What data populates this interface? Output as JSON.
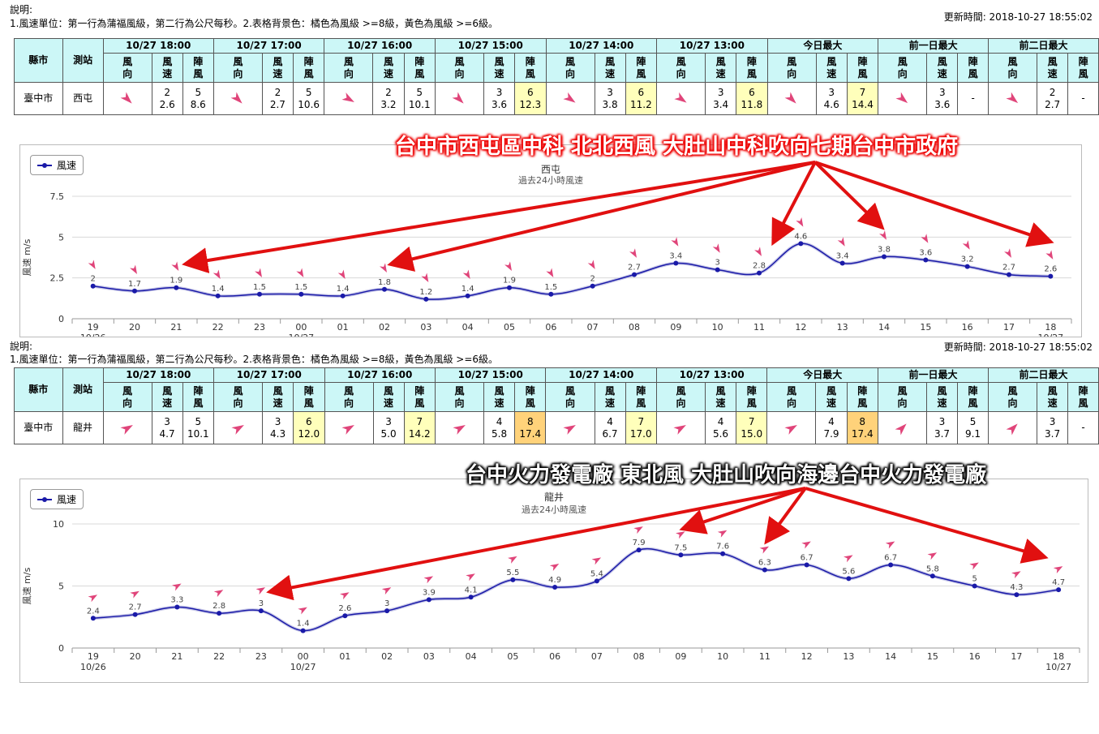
{
  "panels": [
    {
      "note_title": "說明:",
      "note_text": "1.風速單位：第一行為蒲福風級，第二行為公尺每秒。2.表格背景色：橘色為風級 >=8級，黃色為風級 >=6級。",
      "updated": "更新時間: 2018-10-27 18:55:02",
      "table": {
        "county_header": "縣市",
        "station_header": "測站",
        "groups": [
          "10/27 18:00",
          "10/27 17:00",
          "10/27 16:00",
          "10/27 15:00",
          "10/27 14:00",
          "10/27 13:00",
          "今日最大",
          "前一日最大",
          "前二日最大"
        ],
        "sub": [
          "風向",
          "風速",
          "陣風"
        ],
        "county": "臺中市",
        "station": "西屯",
        "cells": [
          {
            "dir": 135,
            "speed": [
              "2",
              "2.6"
            ],
            "gust": [
              "5",
              "8.6"
            ],
            "gust_color": ""
          },
          {
            "dir": 135,
            "speed": [
              "2",
              "2.7"
            ],
            "gust": [
              "5",
              "10.6"
            ],
            "gust_color": ""
          },
          {
            "dir": 120,
            "speed": [
              "2",
              "3.2"
            ],
            "gust": [
              "5",
              "10.1"
            ],
            "gust_color": ""
          },
          {
            "dir": 135,
            "speed": [
              "3",
              "3.6"
            ],
            "gust": [
              "6",
              "12.3"
            ],
            "gust_color": "yellow"
          },
          {
            "dir": 125,
            "speed": [
              "3",
              "3.8"
            ],
            "gust": [
              "6",
              "11.2"
            ],
            "gust_color": "yellow"
          },
          {
            "dir": 125,
            "speed": [
              "3",
              "3.4"
            ],
            "gust": [
              "6",
              "11.8"
            ],
            "gust_color": "yellow"
          },
          {
            "dir": 135,
            "speed": [
              "3",
              "4.6"
            ],
            "gust": [
              "7",
              "14.4"
            ],
            "gust_color": "yellow"
          },
          {
            "dir": 130,
            "speed": [
              "3",
              "3.6"
            ],
            "gust": [
              "-",
              ""
            ],
            "gust_color": ""
          },
          {
            "dir": 130,
            "speed": [
              "2",
              "2.7"
            ],
            "gust": [
              "-",
              ""
            ],
            "gust_color": ""
          }
        ]
      },
      "banner": "台中市西屯區中科 北北西風 大肚山中科吹向七期台中市政府",
      "legend": "風速"
    },
    {
      "note_title": "說明:",
      "note_text": "1.風速單位：第一行為蒲福風級，第二行為公尺每秒。2.表格背景色：橘色為風級 >=8級，黃色為風級 >=6級。",
      "updated": "更新時間: 2018-10-27 18:55:02",
      "table": {
        "county_header": "縣市",
        "station_header": "測站",
        "groups": [
          "10/27 18:00",
          "10/27 17:00",
          "10/27 16:00",
          "10/27 15:00",
          "10/27 14:00",
          "10/27 13:00",
          "今日最大",
          "前一日最大",
          "前二日最大"
        ],
        "sub": [
          "風向",
          "風速",
          "陣風"
        ],
        "county": "臺中市",
        "station": "龍井",
        "cells": [
          {
            "dir": 60,
            "speed": [
              "3",
              "4.7"
            ],
            "gust": [
              "5",
              "10.1"
            ],
            "gust_color": ""
          },
          {
            "dir": 60,
            "speed": [
              "3",
              "4.3"
            ],
            "gust": [
              "6",
              "12.0"
            ],
            "gust_color": "yellow"
          },
          {
            "dir": 60,
            "speed": [
              "3",
              "5.0"
            ],
            "gust": [
              "7",
              "14.2"
            ],
            "gust_color": "yellow"
          },
          {
            "dir": 60,
            "speed": [
              "4",
              "5.8"
            ],
            "gust": [
              "8",
              "17.4"
            ],
            "gust_color": "orange"
          },
          {
            "dir": 60,
            "speed": [
              "4",
              "6.7"
            ],
            "gust": [
              "7",
              "17.0"
            ],
            "gust_color": "yellow"
          },
          {
            "dir": 60,
            "speed": [
              "4",
              "5.6"
            ],
            "gust": [
              "7",
              "15.0"
            ],
            "gust_color": "yellow"
          },
          {
            "dir": 60,
            "speed": [
              "4",
              "7.9"
            ],
            "gust": [
              "8",
              "17.4"
            ],
            "gust_color": "orange"
          },
          {
            "dir": 45,
            "speed": [
              "3",
              "3.7"
            ],
            "gust": [
              "5",
              "9.1"
            ],
            "gust_color": ""
          },
          {
            "dir": 45,
            "speed": [
              "3",
              "3.7"
            ],
            "gust": [
              "-",
              ""
            ],
            "gust_color": ""
          }
        ]
      },
      "banner": "台中火力發電廠 東北風 大肚山吹向海邊台中火力發電廠",
      "legend": "風速"
    }
  ],
  "chart_data": [
    {
      "type": "line",
      "title": "西屯",
      "subtitle": "過去24小時風速",
      "ylabel": "風速 m/s",
      "ylim": [
        0,
        7.5
      ],
      "yticks": [
        "0",
        "2.5",
        "5",
        "7.5"
      ],
      "x": [
        "19",
        "20",
        "21",
        "22",
        "23",
        "00",
        "01",
        "02",
        "03",
        "04",
        "05",
        "06",
        "07",
        "08",
        "09",
        "10",
        "11",
        "12",
        "13",
        "14",
        "15",
        "16",
        "17",
        "18"
      ],
      "x_dates": {
        "0": "10/26",
        "5": "10/27",
        "23": "10/27"
      },
      "series": [
        {
          "name": "風速",
          "values": [
            2,
            1.7,
            1.9,
            1.4,
            1.5,
            1.5,
            1.4,
            1.8,
            1.2,
            1.4,
            1.9,
            1.5,
            2,
            2.7,
            3.4,
            3,
            2.8,
            4.6,
            3.4,
            3.8,
            3.6,
            3.2,
            2.7,
            2.6
          ]
        }
      ],
      "grid": true,
      "legend_position": "top-left",
      "wind_marker_color": "#e0457a"
    },
    {
      "type": "line",
      "title": "龍井",
      "subtitle": "過去24小時風速",
      "ylabel": "風速 m/s",
      "ylim": [
        0,
        10
      ],
      "yticks": [
        "0",
        "5",
        "10"
      ],
      "x": [
        "19",
        "20",
        "21",
        "22",
        "23",
        "00",
        "01",
        "02",
        "03",
        "04",
        "05",
        "06",
        "07",
        "08",
        "09",
        "10",
        "11",
        "12",
        "13",
        "14",
        "15",
        "16",
        "17",
        "18"
      ],
      "x_dates": {
        "0": "10/26",
        "5": "10/27",
        "23": "10/27"
      },
      "series": [
        {
          "name": "風速",
          "values": [
            2.4,
            2.7,
            3.3,
            2.8,
            3,
            1.4,
            2.6,
            3,
            3.9,
            4.1,
            5.5,
            4.9,
            5.4,
            7.9,
            7.5,
            7.6,
            6.3,
            6.7,
            5.6,
            6.7,
            5.8,
            5,
            4.3,
            4.7
          ]
        }
      ],
      "grid": true,
      "legend_position": "top-left",
      "wind_marker_color": "#e0457a"
    }
  ],
  "colors": {
    "line": "#1a1aa8",
    "arrow": "#e11010",
    "header_bg": "#ccf7f7",
    "yellow": "#ffffbb",
    "orange": "#ffd27a"
  }
}
